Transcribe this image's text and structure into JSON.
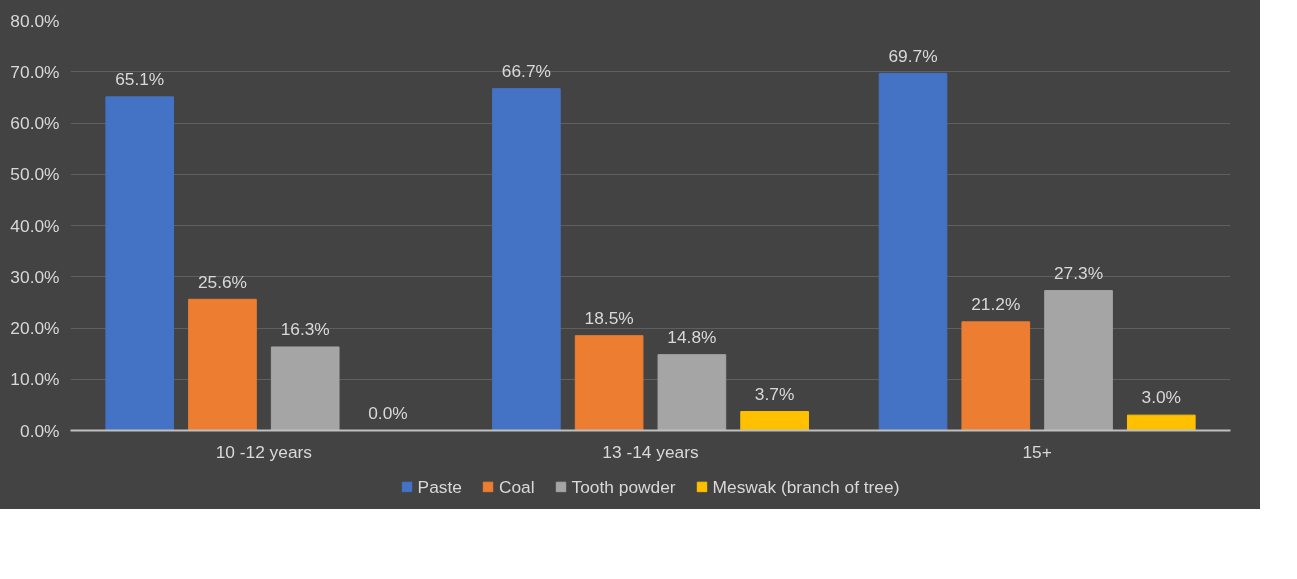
{
  "chart_data": {
    "type": "bar",
    "categories": [
      "10 -12 years",
      "13 -14 years",
      "15+"
    ],
    "series": [
      {
        "name": "Paste",
        "color": "#4472c4",
        "values": [
          65.1,
          66.7,
          69.7
        ],
        "value_labels": [
          "65.1%",
          "66.7%",
          "69.7%"
        ]
      },
      {
        "name": "Coal",
        "color": "#ed7d31",
        "values": [
          25.6,
          18.5,
          21.2
        ],
        "value_labels": [
          "25.6%",
          "18.5%",
          "21.2%"
        ]
      },
      {
        "name": "Tooth powder",
        "color": "#a5a5a5",
        "values": [
          16.3,
          14.8,
          27.3
        ],
        "value_labels": [
          "16.3%",
          "14.8%",
          "27.3%"
        ]
      },
      {
        "name": "Meswak (branch of tree)",
        "color": "#ffc000",
        "values": [
          0.0,
          3.7,
          3.0
        ],
        "value_labels": [
          "0.0%",
          "3.7%",
          "3.0%"
        ]
      }
    ],
    "ylim": [
      0,
      80
    ],
    "yticks": [
      {
        "value": 0,
        "label": "0.0%"
      },
      {
        "value": 10,
        "label": "10.0%"
      },
      {
        "value": 20,
        "label": "20.0%"
      },
      {
        "value": 30,
        "label": "30.0%"
      },
      {
        "value": 40,
        "label": "40.0%"
      },
      {
        "value": 50,
        "label": "50.0%"
      },
      {
        "value": 60,
        "label": "60.0%"
      },
      {
        "value": 70,
        "label": "70.0%"
      },
      {
        "value": 80,
        "label": "80.0%"
      }
    ],
    "grid": "y",
    "legend": "bottom"
  }
}
